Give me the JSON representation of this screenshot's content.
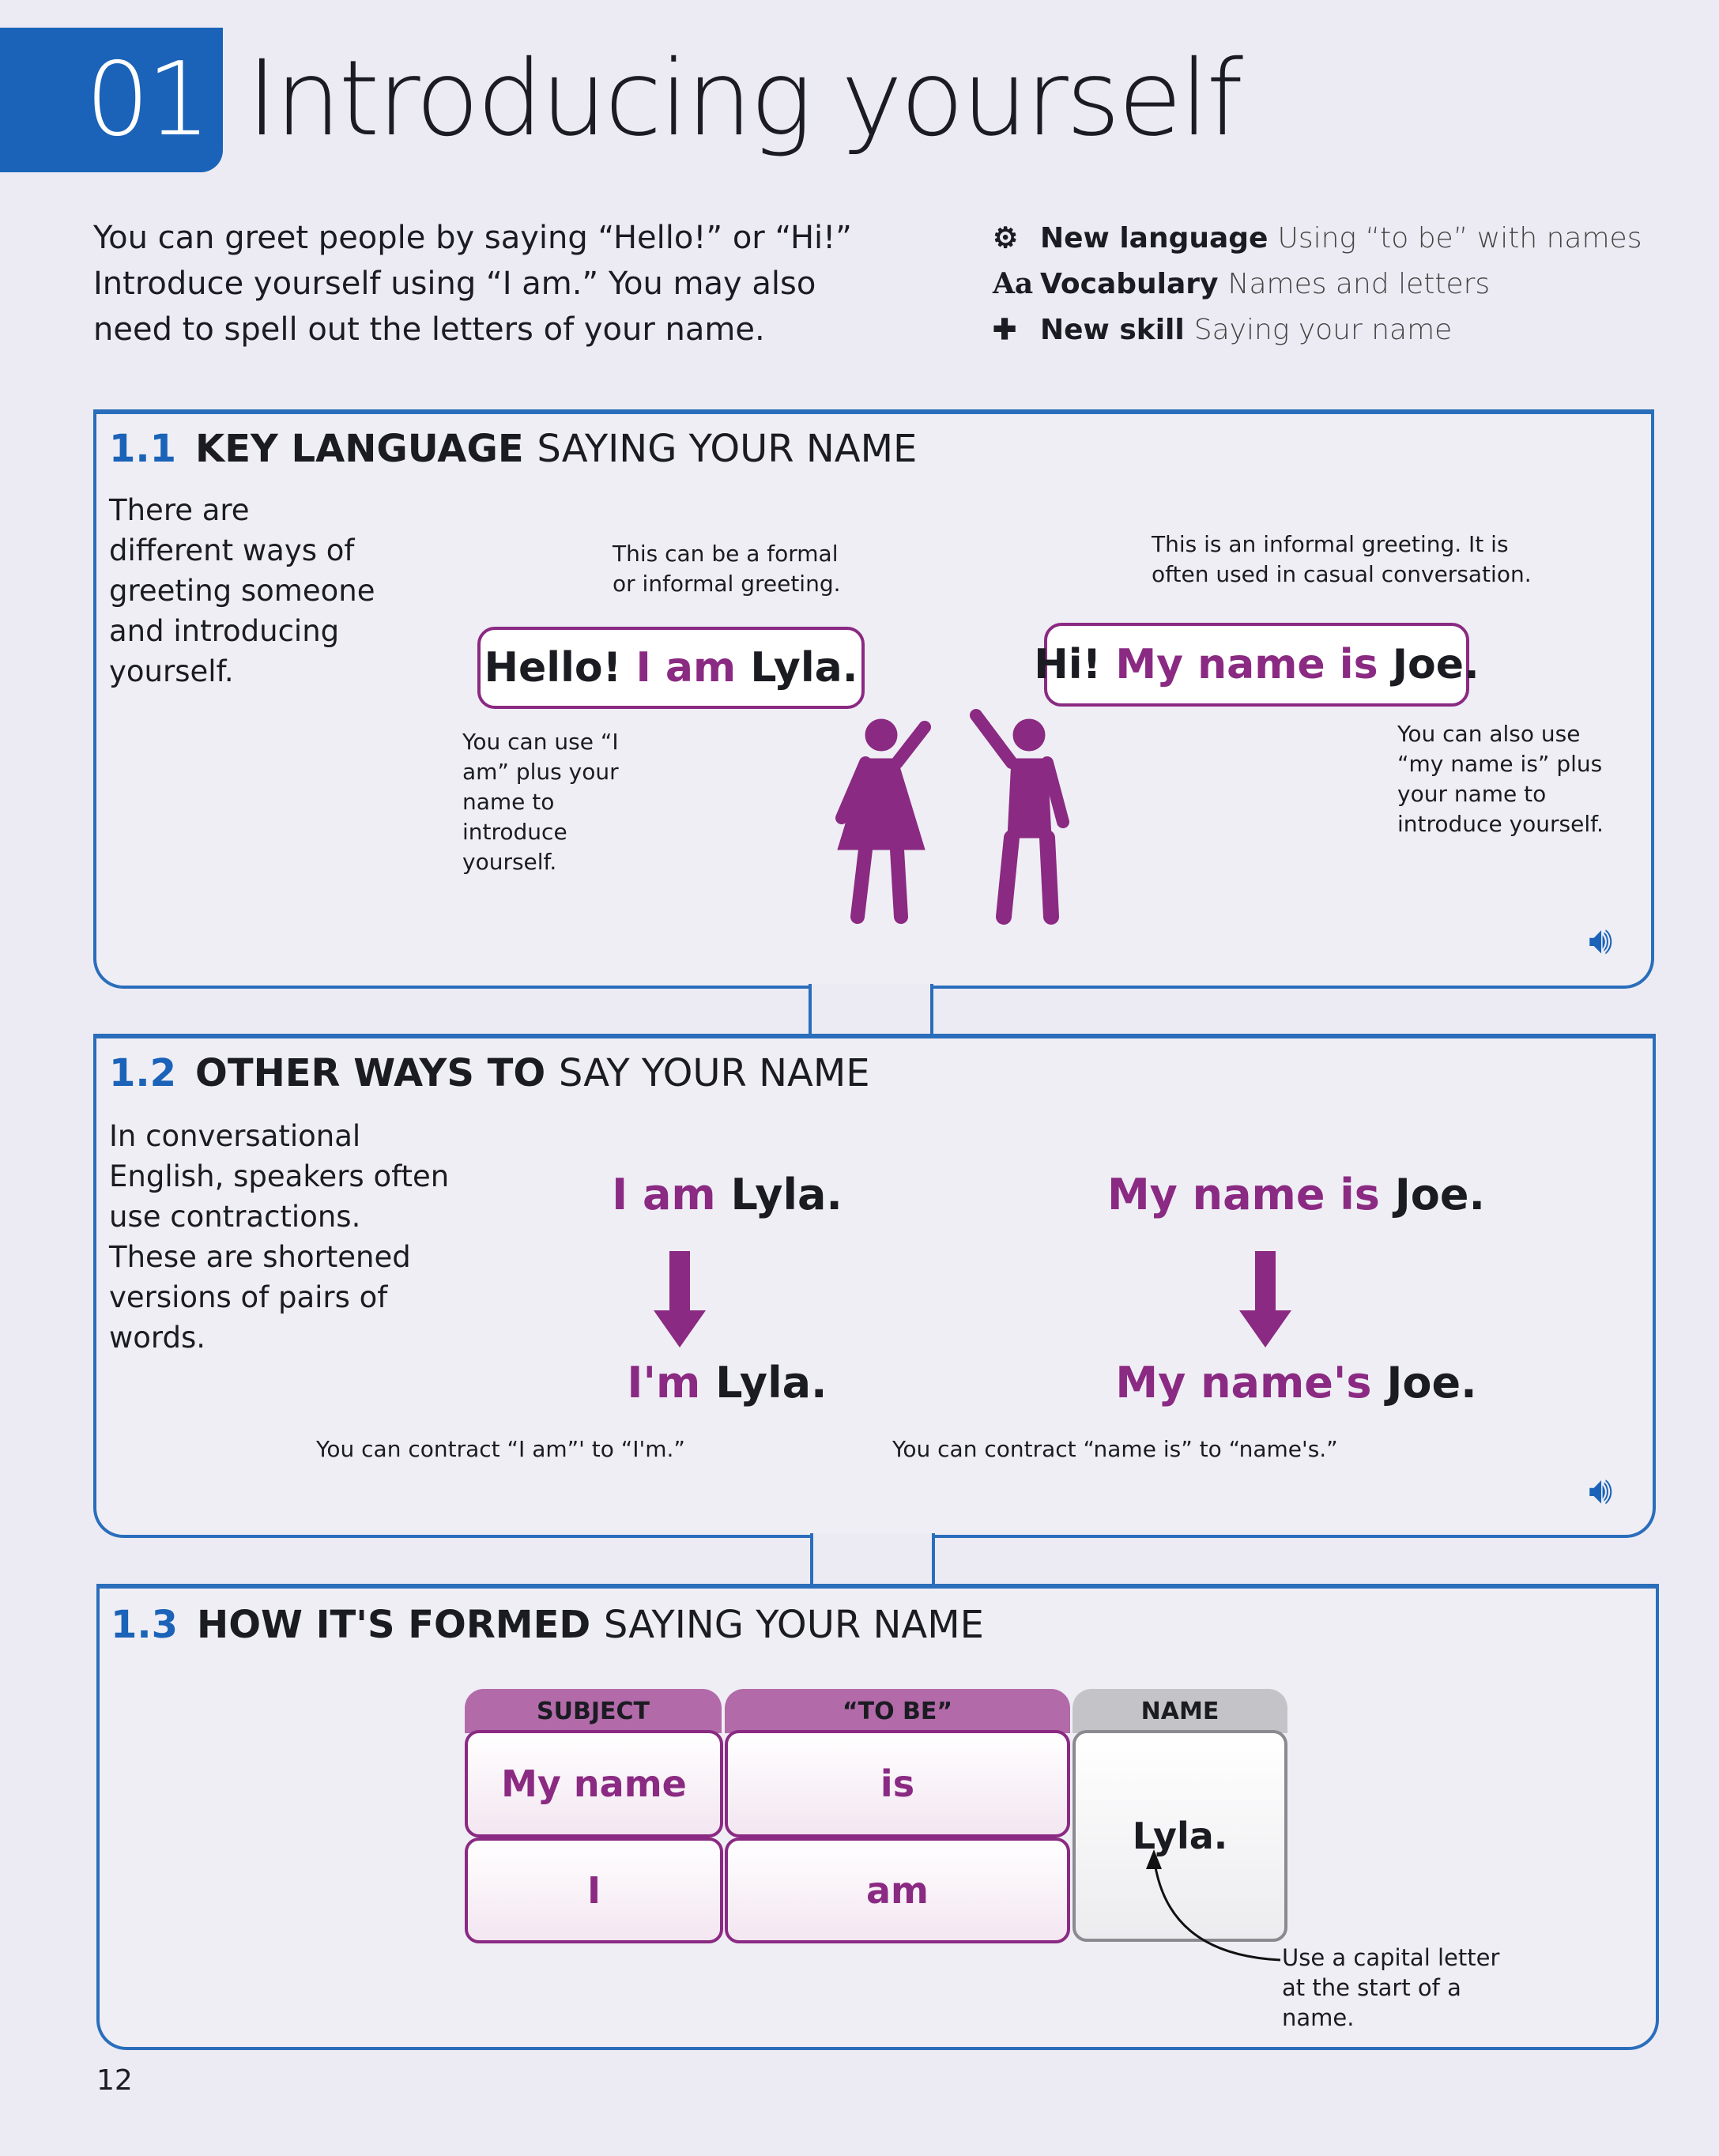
{
  "header": {
    "number": "01",
    "title": "Introducing yourself"
  },
  "intro": "You can greet people by saying “Hello!” or “Hi!” Introduce yourself using “I am.” You may also need to spell out the letters of your name.",
  "meta": [
    {
      "icon": "gears-icon",
      "glyph": "⚙",
      "label": "New language",
      "desc": "Using “to be” with names"
    },
    {
      "icon": "aa-icon",
      "glyph": "Aa",
      "label": "Vocabulary",
      "desc": "Names and letters"
    },
    {
      "icon": "puzzle-icon",
      "glyph": "✚",
      "label": "New skill",
      "desc": "Saying your name"
    }
  ],
  "s1": {
    "num": "1.1",
    "bold": "KEY LANGUAGE",
    "light": "SAYING YOUR NAME",
    "side": "There are different ways of greeting someone and introducing yourself.",
    "note_formal": "This can be a formal or informal greeting.",
    "b1": {
      "a": "Hello!",
      "b": "I am",
      "c": "Lyla."
    },
    "note_iam": "You can use “I am” plus your name to introduce yourself.",
    "note_informal": "This is an informal greeting. It is often used in casual conversation.",
    "b2": {
      "a": "Hi!",
      "b": "My name is",
      "c": "Joe."
    },
    "note_myname": "You can also use “my name is” plus your name to introduce yourself."
  },
  "s2": {
    "num": "1.2",
    "bold": "OTHER WAYS TO",
    "light": "SAY YOUR NAME",
    "side": "In conversational English, speakers often use contractions. These are shortened versions of pairs of words.",
    "l1": {
      "a": "I am",
      "b": "Lyla."
    },
    "l2": {
      "a": "I'm",
      "b": "Lyla."
    },
    "r1": {
      "a": "My name is",
      "b": "Joe."
    },
    "r2": {
      "a": "My name's",
      "b": "Joe."
    },
    "note_l": "You can contract “I am”' to “I'm.”",
    "note_r": "You can contract “name is” to “name's.”"
  },
  "s3": {
    "num": "1.3",
    "bold": "HOW IT'S FORMED",
    "light": "SAYING YOUR NAME",
    "headers": [
      "SUBJECT",
      "“TO BE”",
      "NAME"
    ],
    "rows": [
      [
        "My name",
        "is"
      ],
      [
        "I",
        "am"
      ]
    ],
    "name": "Lyla.",
    "note": "Use a capital letter at the start of a name."
  },
  "page_number": "12",
  "colors": {
    "blue": "#1a63b8",
    "purple": "#8a2a82",
    "grey": "#9a9a9a"
  }
}
